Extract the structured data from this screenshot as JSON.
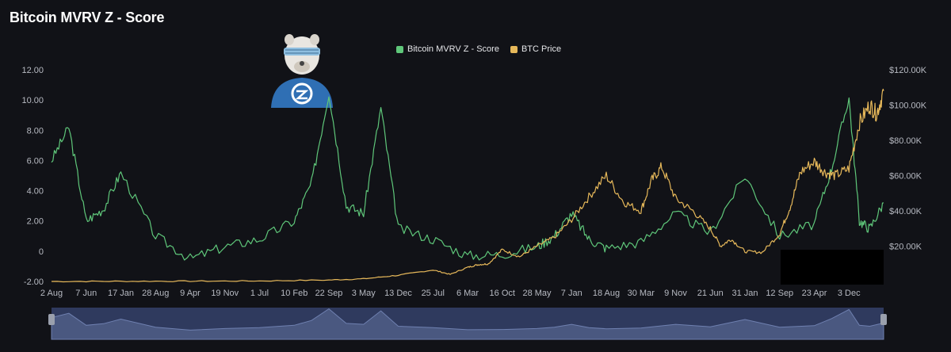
{
  "header": {
    "title": "Bitcoin MVRV Z - Score"
  },
  "colors": {
    "zscore": "#5fc77a",
    "price": "#e6b85a",
    "background": "#111217",
    "navigator": "#2f3a5e"
  },
  "icons": {
    "avatar": "tiger-mascot-avatar-icon",
    "handles": "navigator-handle-icon"
  },
  "chart_data": {
    "type": "line",
    "legend": [
      "Bitcoin MVRV Z - Score",
      "BTC Price"
    ],
    "legend_position": "top-center",
    "grid": false,
    "x_tick_labels": [
      "2 Aug",
      "7 Jun",
      "17 Jan",
      "28 Aug",
      "9 Apr",
      "19 Nov",
      "1 Jul",
      "10 Feb",
      "22 Sep",
      "3 May",
      "13 Dec",
      "25 Jul",
      "6 Mar",
      "16 Oct",
      "28 May",
      "7 Jan",
      "18 Aug",
      "30 Mar",
      "9 Nov",
      "21 Jun",
      "31 Jan",
      "12 Sep",
      "23 Apr",
      "3 Dec"
    ],
    "y_left": {
      "ticks": [
        "12.00",
        "10.00",
        "8.00",
        "6.00",
        "4.00",
        "2.00",
        "0",
        "-2.00"
      ],
      "range": [
        -2,
        12
      ]
    },
    "y_right": {
      "ticks": [
        "$120.00K",
        "$100.00K",
        "$80.00K",
        "$60.00K",
        "$40.00K",
        "$20.00K"
      ],
      "range": [
        0,
        120000
      ]
    },
    "series": [
      {
        "name": "Bitcoin MVRV Z - Score",
        "color": "#5fc77a",
        "x": [
          0,
          0.5,
          1,
          1.5,
          2,
          3,
          4,
          5,
          6,
          7,
          7.5,
          8,
          8.5,
          9,
          9.5,
          10,
          11,
          12,
          13,
          14,
          14.5,
          15,
          15.5,
          16,
          17,
          18,
          19,
          20,
          21,
          22,
          22.5,
          23,
          23.3,
          23.6,
          24
        ],
        "values": [
          6.0,
          8.2,
          2.0,
          2.8,
          5.2,
          1.0,
          -0.5,
          0.3,
          0.8,
          2.0,
          4.5,
          10.5,
          3.0,
          2.5,
          9.5,
          1.5,
          0.8,
          -0.3,
          -0.2,
          0.3,
          1.0,
          2.5,
          0.8,
          0.2,
          0.6,
          2.5,
          1.2,
          5.0,
          1.0,
          1.8,
          5.5,
          10.2,
          2.0,
          1.5,
          3.2
        ]
      },
      {
        "name": "BTC Price",
        "color": "#e6b85a",
        "x": [
          0,
          2,
          4,
          6,
          8,
          9,
          10,
          11,
          11.5,
          12,
          12.3,
          12.6,
          13,
          13.5,
          14,
          14.5,
          15,
          15.5,
          16,
          16.5,
          17,
          17.3,
          17.6,
          18,
          18.5,
          19,
          19.3,
          19.6,
          20,
          20.5,
          21,
          21.3,
          21.6,
          22,
          22.3,
          22.6,
          23,
          23.3,
          23.6,
          23.8,
          24
        ],
        "values": [
          0,
          100,
          150,
          300,
          800,
          1500,
          3500,
          6500,
          4000,
          8000,
          9500,
          10000,
          18000,
          14000,
          20000,
          25000,
          35000,
          48000,
          60000,
          45000,
          40000,
          57000,
          65000,
          47000,
          40000,
          30000,
          20000,
          24000,
          17000,
          16500,
          27000,
          42000,
          62000,
          68000,
          62000,
          60000,
          64000,
          90000,
          100000,
          95000,
          108000
        ]
      }
    ]
  }
}
